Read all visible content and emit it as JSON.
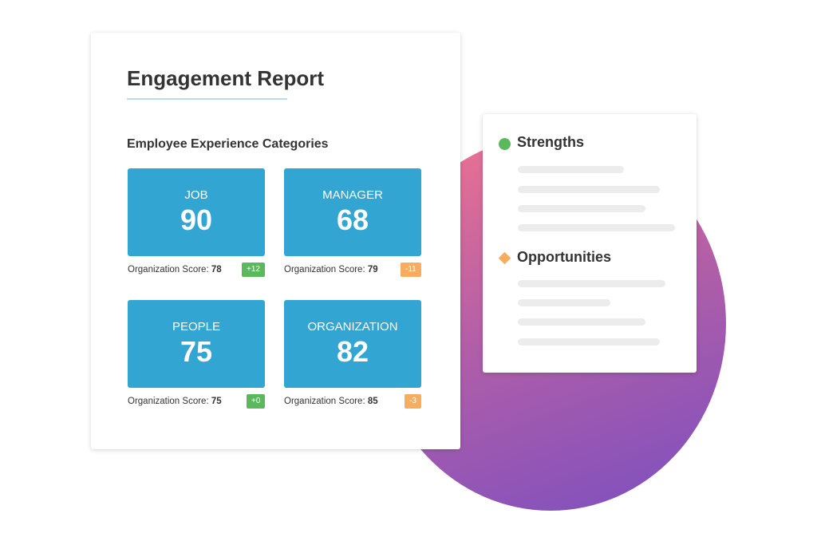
{
  "report": {
    "title": "Engagement Report",
    "subtitle": "Employee Experience Categories",
    "cards": [
      {
        "name": "JOB",
        "score": 90,
        "org_label": "Organization Score:",
        "org_score": 78,
        "delta": "+12"
      },
      {
        "name": "MANAGER",
        "score": 68,
        "org_label": "Organization Score:",
        "org_score": 79,
        "delta": "-11"
      },
      {
        "name": "PEOPLE",
        "score": 75,
        "org_label": "Organization Score:",
        "org_score": 75,
        "delta": "+0"
      },
      {
        "name": "ORGANIZATION",
        "score": 82,
        "org_label": "Organization Score:",
        "org_score": 85,
        "delta": "-3"
      }
    ]
  },
  "insights": {
    "strengths": "Strengths",
    "opportunities": "Opportunities"
  }
}
